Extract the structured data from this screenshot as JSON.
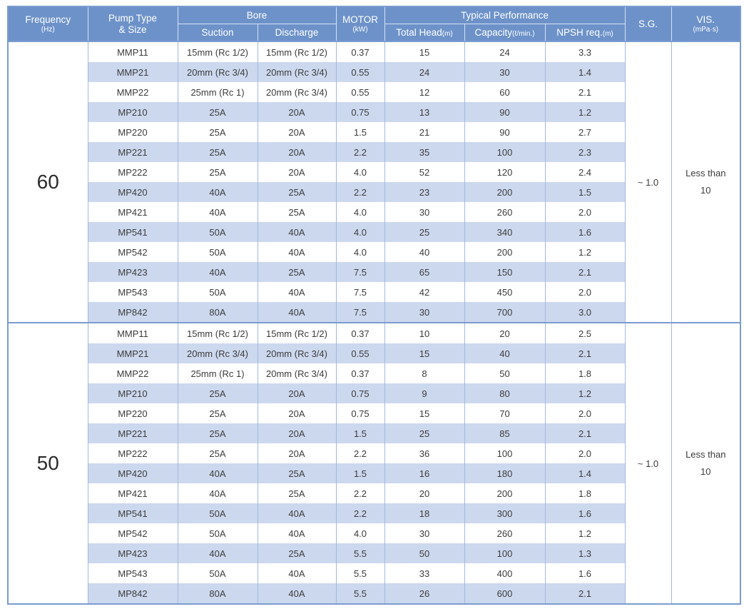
{
  "colors": {
    "header_bg": "#6d92c9",
    "stripe_bg": "#ccd8ee",
    "border_outer": "#7b9ccf"
  },
  "table": {
    "header": {
      "frequency": {
        "label": "Frequency",
        "unit": "(Hz)"
      },
      "pump_type": {
        "line1": "Pump Type",
        "line2": "& Size"
      },
      "bore": {
        "label": "Bore",
        "suction": "Suction",
        "discharge": "Discharge"
      },
      "motor": {
        "label": "MOTOR",
        "unit": "(kW)"
      },
      "performance": {
        "label": "Typical Performance",
        "total_head": "Total Head",
        "total_head_unit": "(m)",
        "capacity": "Capacity",
        "capacity_unit": "(ℓ/min.)",
        "npsh": "NPSH req.",
        "npsh_unit": "(m)"
      },
      "sg": "S.G.",
      "vis": {
        "label": "VIS.",
        "unit": "(mPa·s)"
      }
    },
    "groups": [
      {
        "frequency": "60",
        "sg": "~ 1.0",
        "vis_lines": [
          "Less than",
          "10"
        ],
        "rows": [
          [
            "MMP11",
            "15mm (Rc 1/2)",
            "15mm (Rc 1/2)",
            "0.37",
            "15",
            "24",
            "3.3"
          ],
          [
            "MMP21",
            "20mm (Rc 3/4)",
            "20mm (Rc 3/4)",
            "0.55",
            "24",
            "30",
            "1.4"
          ],
          [
            "MMP22",
            "25mm (Rc 1)",
            "20mm (Rc 3/4)",
            "0.55",
            "12",
            "60",
            "2.1"
          ],
          [
            "MP210",
            "25A",
            "20A",
            "0.75",
            "13",
            "90",
            "1.2"
          ],
          [
            "MP220",
            "25A",
            "20A",
            "1.5",
            "21",
            "90",
            "2.7"
          ],
          [
            "MP221",
            "25A",
            "20A",
            "2.2",
            "35",
            "100",
            "2.3"
          ],
          [
            "MP222",
            "25A",
            "20A",
            "4.0",
            "52",
            "120",
            "2.4"
          ],
          [
            "MP420",
            "40A",
            "25A",
            "2.2",
            "23",
            "200",
            "1.5"
          ],
          [
            "MP421",
            "40A",
            "25A",
            "4.0",
            "30",
            "260",
            "2.0"
          ],
          [
            "MP541",
            "50A",
            "40A",
            "4.0",
            "25",
            "340",
            "1.6"
          ],
          [
            "MP542",
            "50A",
            "40A",
            "4.0",
            "40",
            "200",
            "1.2"
          ],
          [
            "MP423",
            "40A",
            "25A",
            "7.5",
            "65",
            "150",
            "2.1"
          ],
          [
            "MP543",
            "50A",
            "40A",
            "7.5",
            "42",
            "450",
            "2.0"
          ],
          [
            "MP842",
            "80A",
            "40A",
            "7.5",
            "30",
            "700",
            "3.0"
          ]
        ]
      },
      {
        "frequency": "50",
        "sg": "~ 1.0",
        "vis_lines": [
          "Less than",
          "10"
        ],
        "rows": [
          [
            "MMP11",
            "15mm (Rc 1/2)",
            "15mm (Rc 1/2)",
            "0.37",
            "10",
            "20",
            "2.5"
          ],
          [
            "MMP21",
            "20mm (Rc 3/4)",
            "20mm (Rc 3/4)",
            "0.55",
            "15",
            "40",
            "2.1"
          ],
          [
            "MMP22",
            "25mm (Rc 1)",
            "20mm (Rc 3/4)",
            "0.37",
            "8",
            "50",
            "1.8"
          ],
          [
            "MP210",
            "25A",
            "20A",
            "0.75",
            "9",
            "80",
            "1.2"
          ],
          [
            "MP220",
            "25A",
            "20A",
            "0.75",
            "15",
            "70",
            "2.0"
          ],
          [
            "MP221",
            "25A",
            "20A",
            "1.5",
            "25",
            "85",
            "2.1"
          ],
          [
            "MP222",
            "25A",
            "20A",
            "2.2",
            "36",
            "100",
            "2.0"
          ],
          [
            "MP420",
            "40A",
            "25A",
            "1.5",
            "16",
            "180",
            "1.4"
          ],
          [
            "MP421",
            "40A",
            "25A",
            "2.2",
            "20",
            "200",
            "1.8"
          ],
          [
            "MP541",
            "50A",
            "40A",
            "2.2",
            "18",
            "300",
            "1.6"
          ],
          [
            "MP542",
            "50A",
            "40A",
            "4.0",
            "30",
            "260",
            "1.2"
          ],
          [
            "MP423",
            "40A",
            "25A",
            "5.5",
            "50",
            "100",
            "1.3"
          ],
          [
            "MP543",
            "50A",
            "40A",
            "5.5",
            "33",
            "400",
            "1.6"
          ],
          [
            "MP842",
            "80A",
            "40A",
            "5.5",
            "26",
            "600",
            "2.1"
          ]
        ]
      }
    ]
  }
}
